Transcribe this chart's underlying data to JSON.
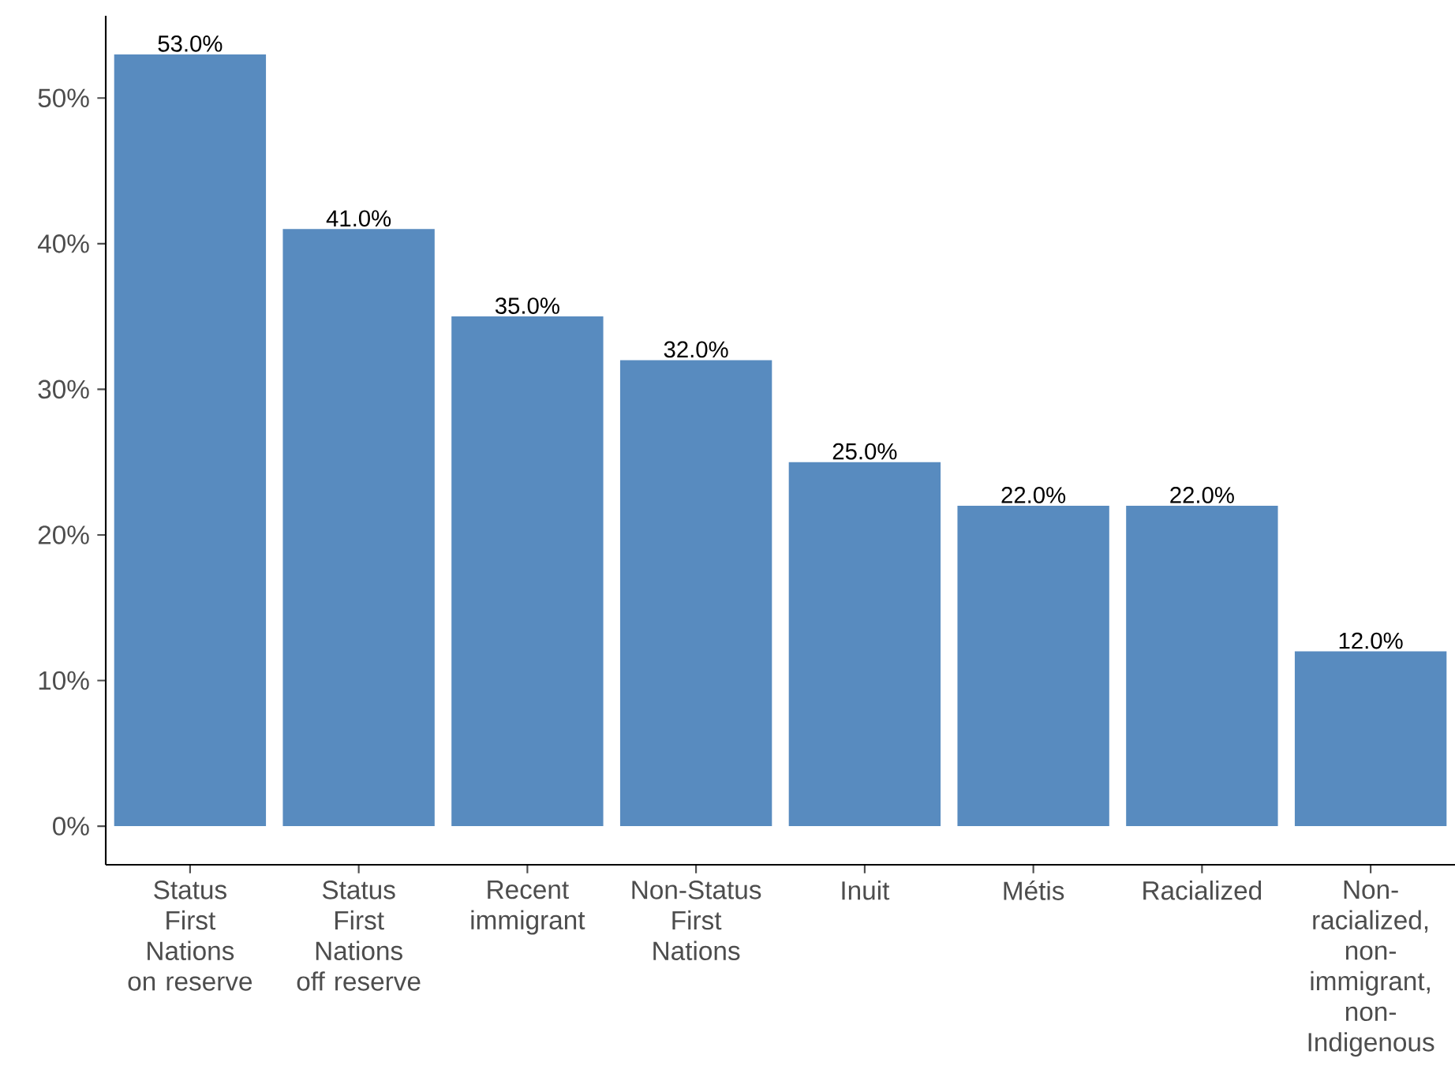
{
  "chart_data": {
    "type": "bar",
    "categories": [
      "Status First Nations on reserve",
      "Status First Nations off reserve",
      "Recent immigrant",
      "Non-Status First Nations",
      "Inuit",
      "Métis",
      "Racialized",
      "Non-racialized, non-immigrant, non-Indigenous"
    ],
    "values": [
      53,
      41,
      35,
      32,
      25,
      22,
      22,
      12
    ],
    "value_labels": [
      "53.0%",
      "41.0%",
      "35.0%",
      "32.0%",
      "25.0%",
      "22.0%",
      "22.0%",
      "12.0%"
    ],
    "color": "#588bbf",
    "ylim": [
      -2.65,
      55.65
    ],
    "yticks": [
      {
        "value": 0,
        "label": "0%"
      },
      {
        "value": 10,
        "label": "10%"
      },
      {
        "value": 20,
        "label": "20%"
      },
      {
        "value": 30,
        "label": "30%"
      },
      {
        "value": 40,
        "label": "40%"
      },
      {
        "value": 50,
        "label": "50%"
      }
    ]
  }
}
